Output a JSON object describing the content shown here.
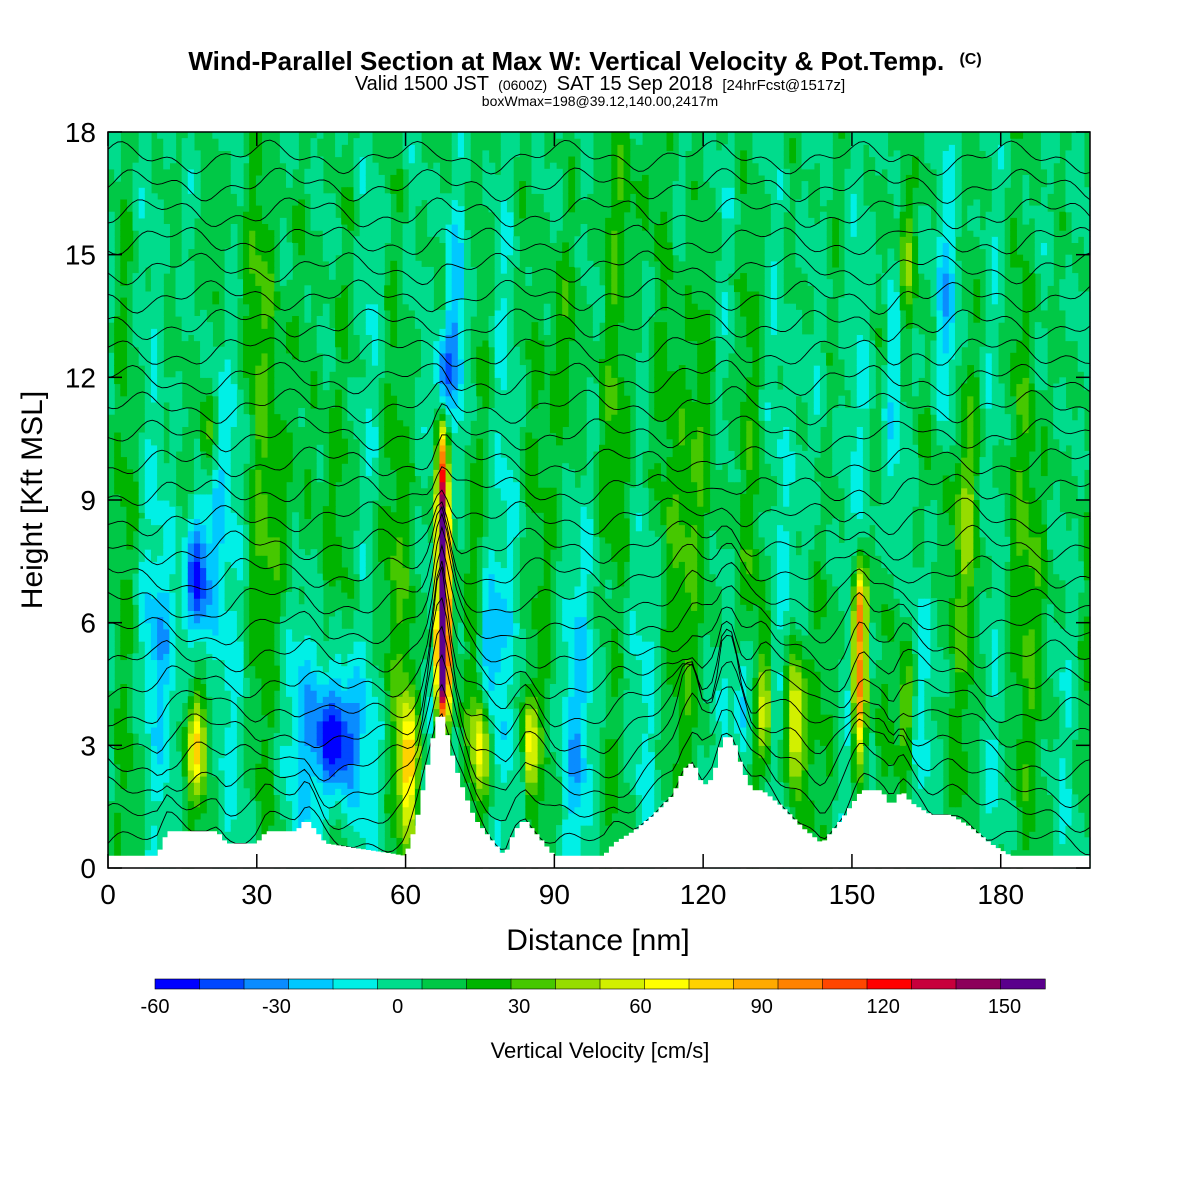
{
  "chart_data": {
    "type": "heatmap",
    "title": "Wind-Parallel Section at Max W: Vertical Velocity & Pot.Temp.",
    "title_mark": "(C)",
    "subtitle_main": "Valid 1500 JST",
    "subtitle_utc": "(0600Z)",
    "subtitle_date": "SAT 15 Sep 2018",
    "subtitle_fcst": "[24hrFcst@1517z]",
    "subtitle2": "boxWmax=198@39.12,140.00,2417m",
    "xlabel": "Distance [nm]",
    "ylabel": "Height [Kft MSL]",
    "xlim": [
      0,
      198
    ],
    "ylim": [
      0,
      18
    ],
    "x_ticks": [
      0,
      30,
      60,
      90,
      120,
      150,
      180
    ],
    "y_ticks": [
      0,
      3,
      6,
      9,
      12,
      15,
      18
    ],
    "colorbar": {
      "label": "Vertical Velocity [cm/s]",
      "min": -60,
      "max": 160,
      "step": 10,
      "tick_values": [
        -60,
        -30,
        0,
        30,
        60,
        90,
        120,
        150
      ],
      "colors": [
        "#0000ff",
        "#0047ff",
        "#0a8cff",
        "#00c8ff",
        "#00f0e6",
        "#00dc8c",
        "#00c846",
        "#00b400",
        "#46c800",
        "#96dc00",
        "#d2f000",
        "#ffff00",
        "#ffd200",
        "#ffaa00",
        "#ff8200",
        "#ff4600",
        "#ff0000",
        "#c8003c",
        "#8c005a",
        "#5a008c"
      ]
    },
    "terrain_kft": [
      [
        0,
        0.3
      ],
      [
        10,
        0.3
      ],
      [
        12,
        0.9
      ],
      [
        22,
        0.9
      ],
      [
        24,
        0.6
      ],
      [
        30,
        0.6
      ],
      [
        32,
        0.9
      ],
      [
        38,
        0.9
      ],
      [
        40,
        1.2
      ],
      [
        42,
        0.9
      ],
      [
        44,
        0.6
      ],
      [
        60,
        0.3
      ],
      [
        62,
        1.0
      ],
      [
        64,
        2.2
      ],
      [
        66,
        3.5
      ],
      [
        67,
        3.9
      ],
      [
        68,
        3.5
      ],
      [
        70,
        2.5
      ],
      [
        72,
        1.8
      ],
      [
        74,
        1.2
      ],
      [
        76,
        0.9
      ],
      [
        78,
        0.6
      ],
      [
        80,
        0.3
      ],
      [
        82,
        0.9
      ],
      [
        84,
        1.2
      ],
      [
        86,
        0.9
      ],
      [
        88,
        0.6
      ],
      [
        90,
        0.3
      ],
      [
        100,
        0.3
      ],
      [
        102,
        0.6
      ],
      [
        106,
        0.9
      ],
      [
        110,
        1.3
      ],
      [
        114,
        1.8
      ],
      [
        116,
        2.4
      ],
      [
        118,
        2.6
      ],
      [
        120,
        2.0
      ],
      [
        122,
        2.2
      ],
      [
        124,
        3.2
      ],
      [
        126,
        3.2
      ],
      [
        128,
        2.4
      ],
      [
        130,
        1.9
      ],
      [
        132,
        1.9
      ],
      [
        136,
        1.5
      ],
      [
        140,
        1.0
      ],
      [
        144,
        0.6
      ],
      [
        148,
        1.2
      ],
      [
        152,
        1.9
      ],
      [
        156,
        1.9
      ],
      [
        158,
        1.5
      ],
      [
        160,
        1.9
      ],
      [
        162,
        1.6
      ],
      [
        166,
        1.3
      ],
      [
        170,
        1.3
      ],
      [
        174,
        1.0
      ],
      [
        178,
        0.6
      ],
      [
        182,
        0.3
      ],
      [
        198,
        0.3
      ]
    ],
    "w_features": [
      {
        "x": 67.5,
        "z": 8.0,
        "sx": 0.9,
        "sz": 2.6,
        "w": 150
      },
      {
        "x": 67.5,
        "z": 5.0,
        "sx": 1.1,
        "sz": 1.2,
        "w": 90
      },
      {
        "x": 67.5,
        "z": 11.8,
        "sx": 1.0,
        "sz": 0.9,
        "w": -70
      },
      {
        "x": 70.0,
        "z": 13.0,
        "sx": 2.0,
        "sz": 2.0,
        "w": -25
      },
      {
        "x": 18,
        "z": 7.0,
        "sx": 1.8,
        "sz": 1.2,
        "w": -55
      },
      {
        "x": 21,
        "z": 9.5,
        "sx": 2.0,
        "sz": 2.5,
        "w": -20
      },
      {
        "x": 18,
        "z": 3.0,
        "sx": 1.3,
        "sz": 0.8,
        "w": 50
      },
      {
        "x": 20,
        "z": 10.5,
        "sx": 1.2,
        "sz": 0.8,
        "w": 30
      },
      {
        "x": 46,
        "z": 3.2,
        "sx": 3.0,
        "sz": 1.0,
        "w": -50
      },
      {
        "x": 44,
        "z": 3.5,
        "sx": 5.0,
        "sz": 2.0,
        "w": -20
      },
      {
        "x": 60.5,
        "z": 2.5,
        "sx": 1.4,
        "sz": 1.2,
        "w": 60
      },
      {
        "x": 75,
        "z": 3.0,
        "sx": 1.2,
        "sz": 0.9,
        "w": 45
      },
      {
        "x": 77,
        "z": 5.5,
        "sx": 1.5,
        "sz": 1.2,
        "w": -35
      },
      {
        "x": 85,
        "z": 3.0,
        "sx": 1.0,
        "sz": 0.9,
        "w": 50
      },
      {
        "x": 94,
        "z": 3.0,
        "sx": 2.5,
        "sz": 2.0,
        "w": -15
      },
      {
        "x": 128,
        "z": 4.2,
        "sx": 1.2,
        "sz": 1.0,
        "w": -35
      },
      {
        "x": 138.5,
        "z": 3.5,
        "sx": 1.4,
        "sz": 1.3,
        "w": 65
      },
      {
        "x": 132.5,
        "z": 4.0,
        "sx": 0.9,
        "sz": 1.0,
        "w": 40
      },
      {
        "x": 151.5,
        "z": 4.5,
        "sx": 1.0,
        "sz": 1.6,
        "w": 85
      },
      {
        "x": 151.5,
        "z": 6.5,
        "sx": 1.0,
        "sz": 0.7,
        "w": 55
      },
      {
        "x": 158,
        "z": 11.0,
        "sx": 1.5,
        "sz": 3.5,
        "w": -25
      },
      {
        "x": 161,
        "z": 15.0,
        "sx": 1.3,
        "sz": 1.5,
        "w": 35
      },
      {
        "x": 169,
        "z": 13.0,
        "sx": 2.0,
        "sz": 2.5,
        "w": -25
      },
      {
        "x": 166,
        "z": 10.0,
        "sx": 3.0,
        "sz": 2.0,
        "w": 15
      },
      {
        "x": 161,
        "z": 4.0,
        "sx": 1.0,
        "sz": 1.0,
        "w": 30
      },
      {
        "x": 173,
        "z": 8.5,
        "sx": 1.5,
        "sz": 2.0,
        "w": 20
      },
      {
        "x": 36,
        "z": 9.0,
        "sx": 5.0,
        "sz": 2.5,
        "w": 15
      },
      {
        "x": 110,
        "z": 10.0,
        "sx": 12.0,
        "sz": 3.0,
        "w": 10
      },
      {
        "x": 185,
        "z": 8.0,
        "sx": 8.0,
        "sz": 4.0,
        "w": 10
      },
      {
        "x": 30,
        "z": 14.5,
        "sx": 6.0,
        "sz": 2.0,
        "w": 12
      },
      {
        "x": 10,
        "z": 5.5,
        "sx": 4.0,
        "sz": 1.5,
        "w": -15
      },
      {
        "x": 55,
        "z": 7.0,
        "sx": 4.0,
        "sz": 2.5,
        "w": 12
      },
      {
        "x": 92,
        "z": 13.0,
        "sx": 3.0,
        "sz": 2.0,
        "w": 12
      },
      {
        "x": 100,
        "z": 6.0,
        "sx": 4.0,
        "sz": 2.0,
        "w": -10
      },
      {
        "x": 105,
        "z": 16.5,
        "sx": 4.0,
        "sz": 1.5,
        "w": 14
      },
      {
        "x": 120,
        "z": 8.0,
        "sx": 3.0,
        "sz": 3.5,
        "w": 12
      },
      {
        "x": 142,
        "z": 10.0,
        "sx": 3.0,
        "sz": 3.0,
        "w": -8
      }
    ],
    "wave_features": [
      {
        "x": 0,
        "z": 5.0,
        "sz": 6.0,
        "amp": 25,
        "wl": 14
      },
      {
        "x": 100,
        "z": 14.0,
        "sz": 4.0,
        "amp": 12,
        "wl": 9
      }
    ],
    "isentrope_count": 26
  }
}
